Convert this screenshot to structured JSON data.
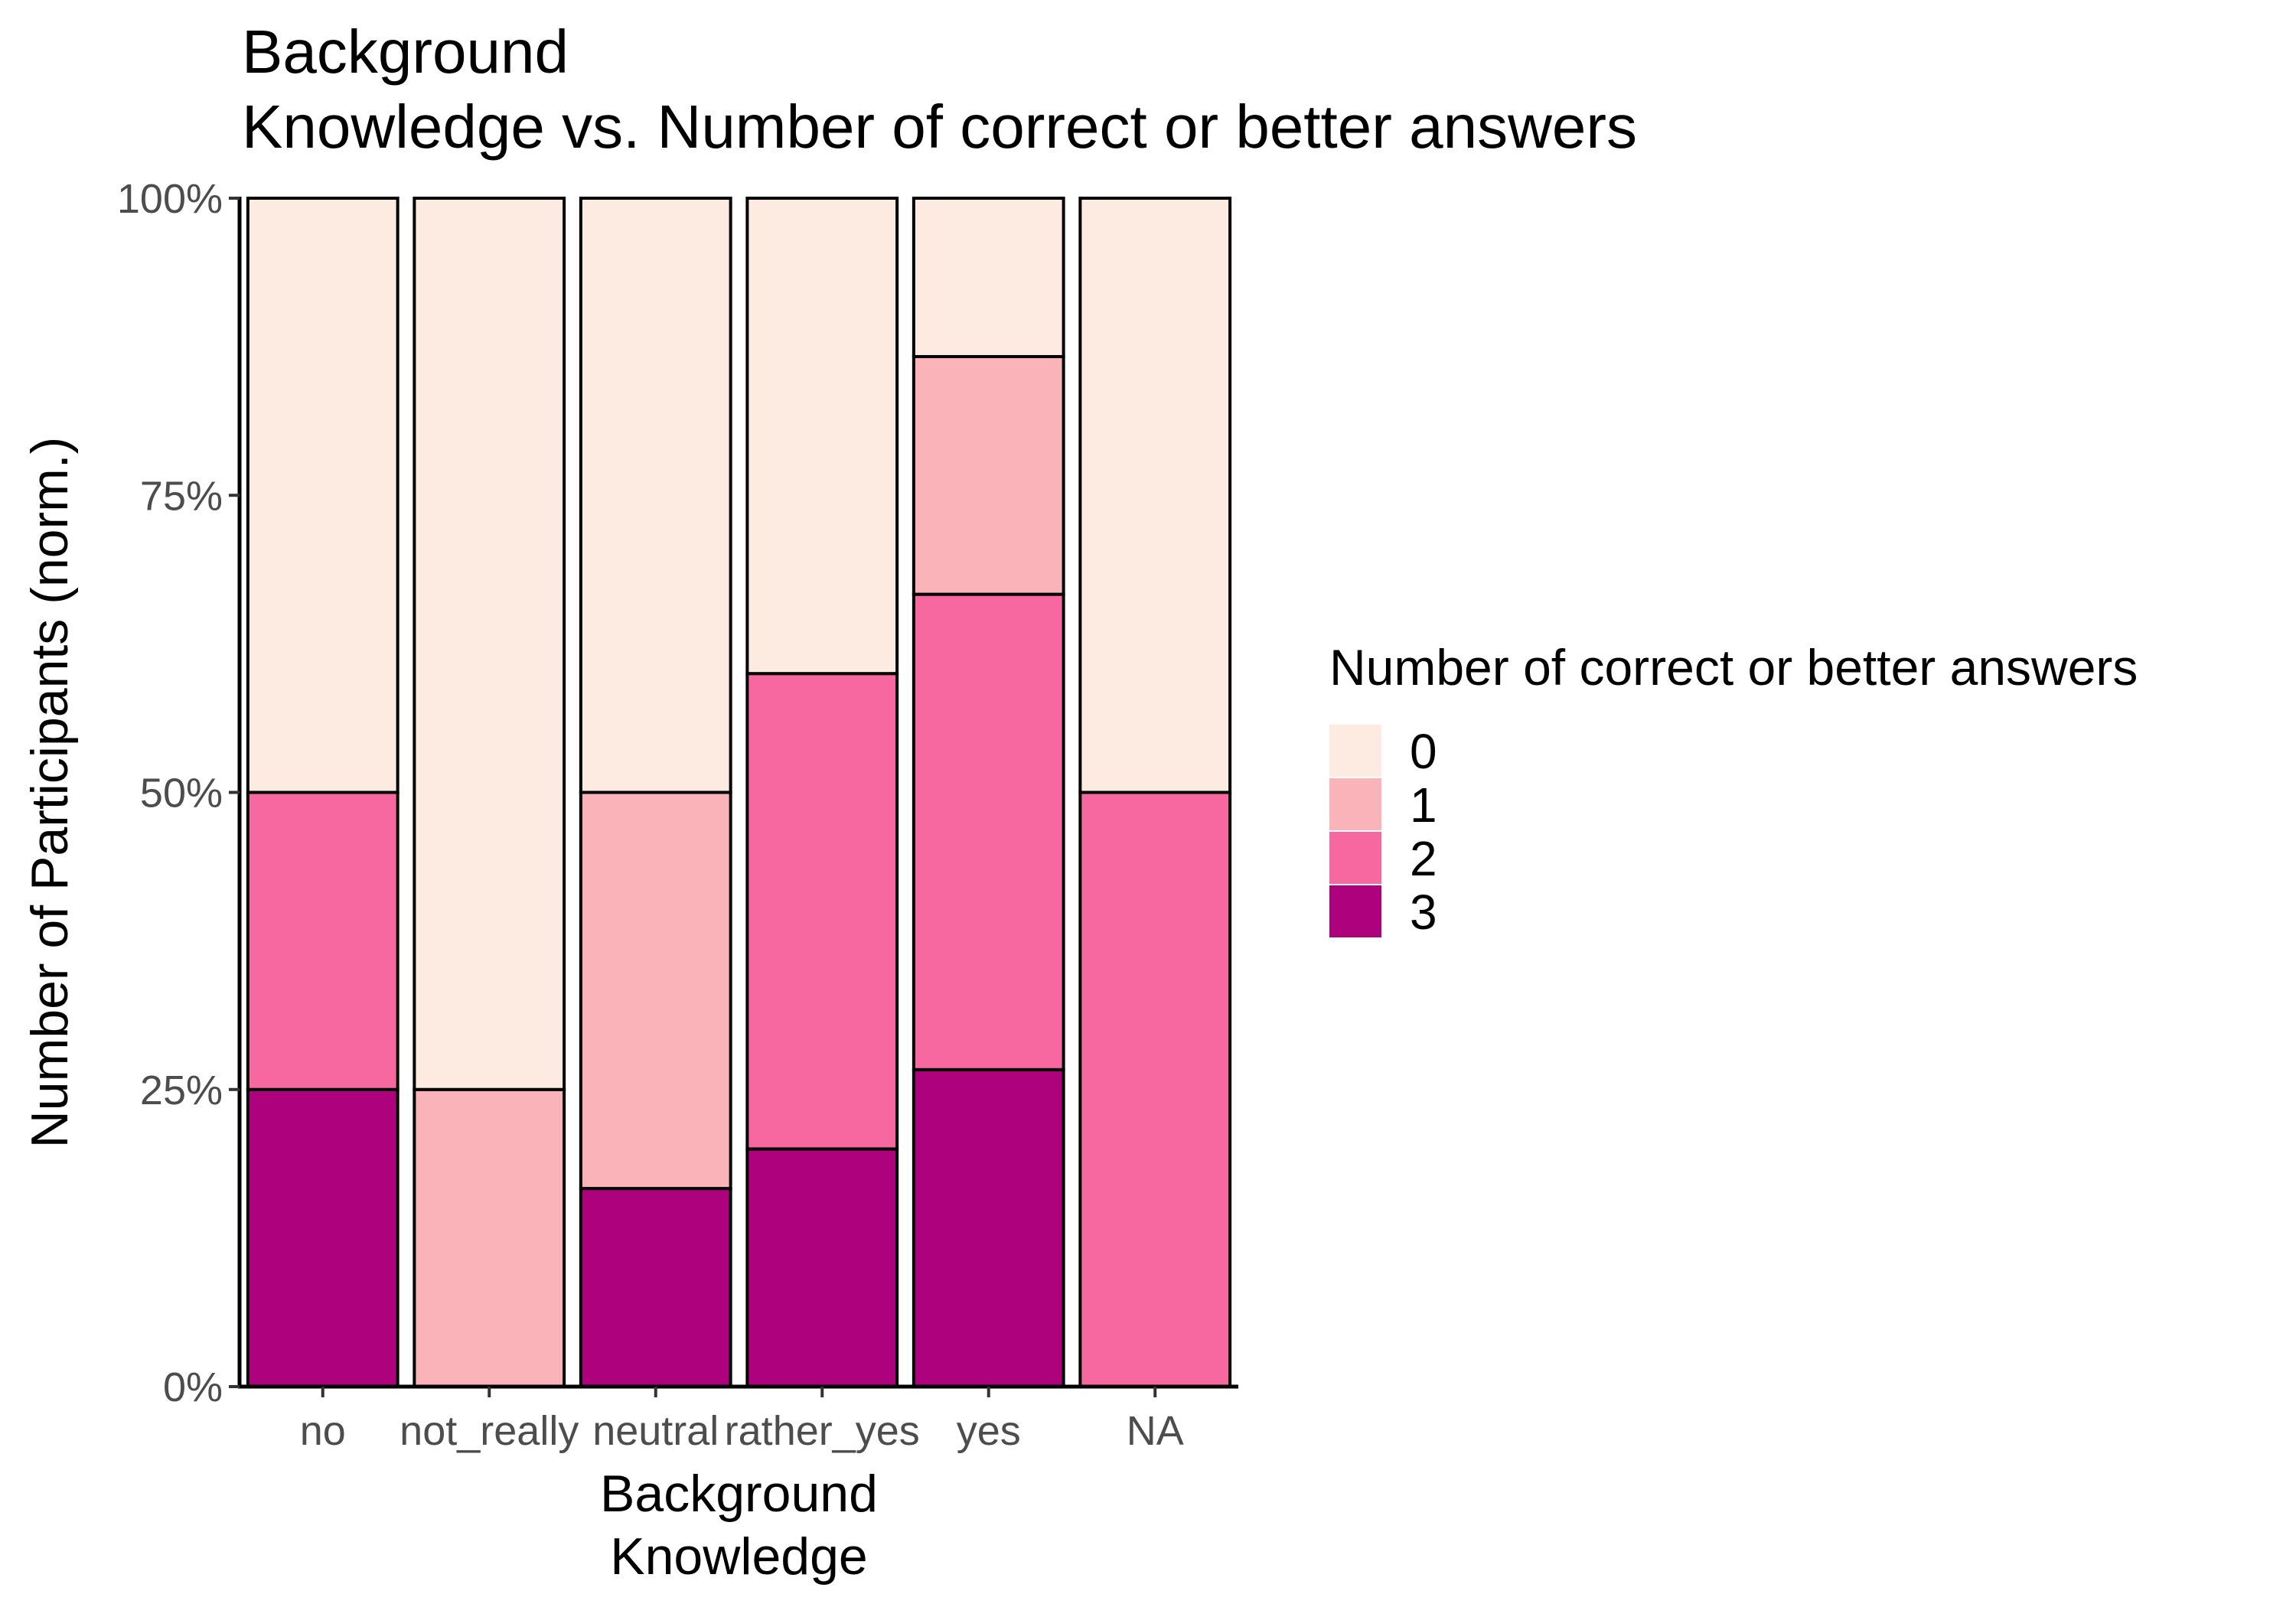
{
  "chart_data": {
    "type": "bar",
    "stacked": true,
    "normalized": true,
    "title": "Background\nKnowledge vs. Number of correct or better answers",
    "xlabel": "Background\nKnowledge",
    "ylabel": "Number of Participants (norm.)",
    "ylim": [
      0,
      1
    ],
    "yticks": [
      {
        "value": 0,
        "label": "0%"
      },
      {
        "value": 0.25,
        "label": "25%"
      },
      {
        "value": 0.5,
        "label": "50%"
      },
      {
        "value": 0.75,
        "label": "75%"
      },
      {
        "value": 1,
        "label": "100%"
      }
    ],
    "categories": [
      "no",
      "not_really",
      "neutral",
      "rather_yes",
      "yes",
      "NA"
    ],
    "legend": {
      "title": "Number of correct or better answers",
      "placement": "right"
    },
    "series": [
      {
        "name": "0",
        "color": "#fdebe1",
        "values": [
          0.5,
          0.75,
          0.5,
          0.4,
          0.1333,
          0.5
        ]
      },
      {
        "name": "1",
        "color": "#fab4b9",
        "values": [
          0,
          0.25,
          0.3333,
          0,
          0.2,
          0
        ]
      },
      {
        "name": "2",
        "color": "#f768a1",
        "values": [
          0.25,
          0,
          0,
          0.4,
          0.4,
          0.5
        ]
      },
      {
        "name": "3",
        "color": "#ae017e",
        "values": [
          0.25,
          0,
          0.1667,
          0.2,
          0.2667,
          0
        ]
      }
    ],
    "grid": false
  }
}
